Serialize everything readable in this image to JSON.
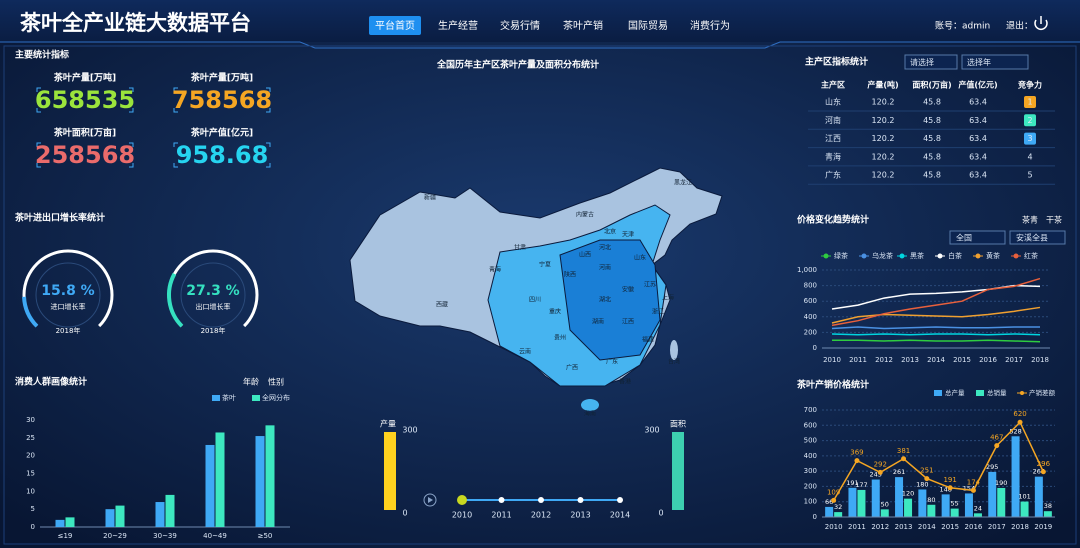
{
  "header": {
    "title": "茶叶全产业链大数据平台",
    "nav": [
      "平台首页",
      "生产经营",
      "交易行情",
      "茶叶产销",
      "国际贸易",
      "消费行为"
    ],
    "account": "账号：admin",
    "logout": "退出："
  },
  "indicators": {
    "title": "主要统计指标",
    "items": [
      {
        "label": "茶叶产量[万吨]",
        "value": 658535,
        "color": "#9be43c"
      },
      {
        "label": "茶叶产量[万吨]",
        "value": 758568,
        "color": "#f5a623"
      },
      {
        "label": "茶叶面积[万亩]",
        "value": 258568,
        "color": "#ea6b6b"
      },
      {
        "label": "茶叶产值[亿元]",
        "value": 958.68,
        "color": "#26d4f0"
      }
    ]
  },
  "chart_data": [
    {
      "type": "gauge",
      "title": "茶叶进出口增长率统计",
      "categories": [
        "进口增长率",
        "出口增长率"
      ],
      "values": [
        15.8,
        27.3
      ],
      "value_labels": [
        "15.8 %",
        "27.3 %"
      ],
      "period": "2018年",
      "ylim": [
        0,
        100
      ],
      "colors": [
        "#3fa9f5",
        "#35e0c0"
      ]
    },
    {
      "type": "bar",
      "title": "消费人群画像统计",
      "tabs": [
        "年龄",
        "性别"
      ],
      "categories": [
        "≤19",
        "20~29",
        "30~39",
        "40~49",
        "≥50"
      ],
      "series": [
        {
          "name": "茶叶",
          "color": "#3fa9f5",
          "values": [
            2,
            5,
            7,
            23,
            25.5
          ]
        },
        {
          "name": "全网分布",
          "color": "#3de8c0",
          "values": [
            2.7,
            6,
            9,
            26.5,
            28.5
          ]
        }
      ],
      "ylim": [
        0,
        30
      ],
      "yticks": [
        0,
        5,
        10,
        15,
        20,
        25,
        30
      ],
      "legend": "top-right"
    },
    {
      "type": "line",
      "title": "价格变化趋势统计",
      "tabs": [
        "茶青",
        "干茶"
      ],
      "filters": [
        "全国",
        "安溪全县"
      ],
      "categories": [
        "2010",
        "2011",
        "2012",
        "2013",
        "2014",
        "2015",
        "2016",
        "2017",
        "2018"
      ],
      "series": [
        {
          "name": "绿茶",
          "color": "#2ecc40",
          "values": [
            100,
            100,
            90,
            100,
            90,
            90,
            100,
            90,
            80
          ]
        },
        {
          "name": "乌龙茶",
          "color": "#4a90e2",
          "values": [
            250,
            270,
            250,
            260,
            270,
            260,
            260,
            270,
            270
          ]
        },
        {
          "name": "黑茶",
          "color": "#00d5e0",
          "values": [
            180,
            170,
            180,
            170,
            180,
            180,
            170,
            180,
            170
          ]
        },
        {
          "name": "白茶",
          "color": "#ffffff",
          "values": [
            500,
            550,
            640,
            690,
            700,
            720,
            750,
            800,
            790
          ]
        },
        {
          "name": "黄茶",
          "color": "#f0a030",
          "values": [
            320,
            400,
            430,
            420,
            410,
            400,
            430,
            470,
            520
          ]
        },
        {
          "name": "红茶",
          "color": "#e8603c",
          "values": [
            290,
            350,
            440,
            500,
            550,
            600,
            750,
            790,
            890
          ]
        }
      ],
      "ylim": [
        0,
        1000
      ],
      "yticks": [
        0,
        200,
        400,
        600,
        800,
        {
          "value": 1000,
          "label": "1,000"
        }
      ],
      "grid": true,
      "legend": "top"
    },
    {
      "type": "combo",
      "title": "茶叶产销价格统计",
      "categories": [
        "2010",
        "2011",
        "2012",
        "2013",
        "2014",
        "2015",
        "2016",
        "2017",
        "2018",
        "2019"
      ],
      "series": [
        {
          "name": "总产量",
          "color": "#3fa9f5",
          "mark": "bar",
          "values": [
            66,
            191,
            245,
            261,
            180,
            148,
            154,
            295,
            528,
            264
          ]
        },
        {
          "name": "总销量",
          "color": "#3de8c0",
          "mark": "bar",
          "values": [
            32,
            177,
            50,
            120,
            80,
            55,
            24,
            190,
            101,
            38
          ]
        },
        {
          "name": "产销差额",
          "color": "#f5a623",
          "mark": "line",
          "values": [
            109,
            369,
            292,
            381,
            251,
            191,
            174,
            467,
            620,
            296
          ]
        }
      ],
      "ylim": [
        0,
        700
      ],
      "yticks": [
        0,
        100,
        200,
        300,
        400,
        500,
        600,
        700
      ],
      "grid": true,
      "legend": "top-right"
    }
  ],
  "map": {
    "title": "全国历年主产区茶叶产量及面积分布统计",
    "labels": [
      "新疆",
      "西藏",
      "青海",
      "甘肃",
      "宁夏",
      "内蒙古",
      "黑龙江",
      "北京",
      "天津",
      "河北",
      "山西",
      "山东",
      "河南",
      "陕西",
      "四川",
      "重庆",
      "湖北",
      "安徽",
      "江苏",
      "上海",
      "浙江",
      "湖南",
      "江西",
      "贵州",
      "云南",
      "广西",
      "广东",
      "福建",
      "台湾",
      "香港",
      "海南"
    ],
    "scales": [
      {
        "name": "产量",
        "max": 300,
        "min": 0,
        "color": "#ffd21f"
      },
      {
        "name": "面积",
        "max": 300,
        "min": 0,
        "color": "#3dcfb0"
      }
    ],
    "timeline": [
      2010,
      2011,
      2012,
      2013,
      2014
    ]
  },
  "region_table": {
    "title": "主产区指标统计",
    "filters": [
      "请选择",
      "选择年"
    ],
    "columns": [
      "主产区",
      "产量(吨)",
      "面积(万亩)",
      "产值(亿元)",
      "竞争力"
    ],
    "rows": [
      [
        "山东",
        120.2,
        45.8,
        63.4,
        1
      ],
      [
        "河南",
        120.2,
        45.8,
        63.4,
        2
      ],
      [
        "江西",
        120.2,
        45.8,
        63.4,
        3
      ],
      [
        "青海",
        120.2,
        45.8,
        63.4,
        4
      ],
      [
        "广东",
        120.2,
        45.8,
        63.4,
        5
      ]
    ]
  }
}
